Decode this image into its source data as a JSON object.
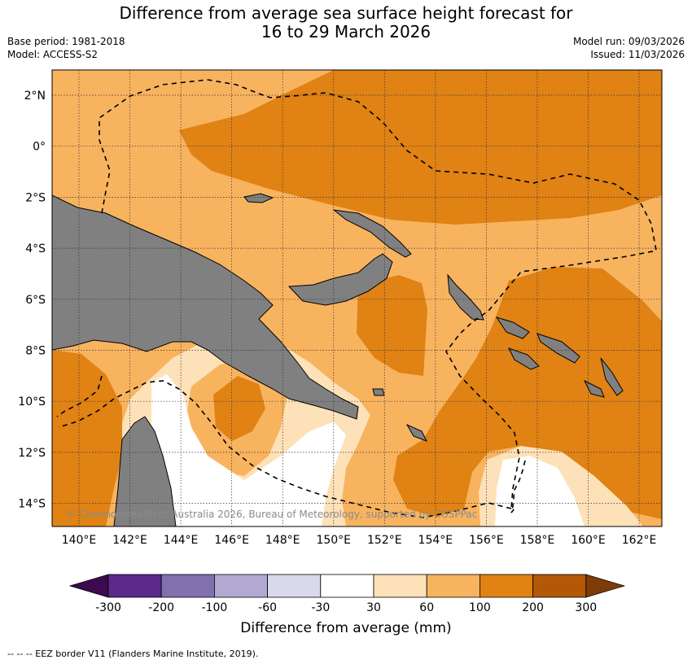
{
  "title_line1": "Difference from average sea surface height forecast for",
  "title_line2": "16 to 29 March 2026",
  "base_period": "Base period: 1981-2018",
  "model": "Model: ACCESS-S2",
  "model_run": "Model run: 09/03/2026",
  "issued": "Issued: 11/03/2026",
  "copyright": "© Commonwealth of Australia 2026, Bureau of Meteorology, supported by COSPPac",
  "lon_ticks": [
    "140°E",
    "142°E",
    "144°E",
    "146°E",
    "148°E",
    "150°E",
    "152°E",
    "154°E",
    "156°E",
    "158°E",
    "160°E",
    "162°E"
  ],
  "lat_ticks": [
    "2°N",
    "0°",
    "2°S",
    "4°S",
    "6°S",
    "8°S",
    "10°S",
    "12°S",
    "14°S"
  ],
  "colorbar": {
    "title": "Difference from average (mm)",
    "tick_labels": [
      "-300",
      "-200",
      "-100",
      "-60",
      "-30",
      "30",
      "60",
      "100",
      "200",
      "300"
    ],
    "colors": [
      "#3b0a4f",
      "#5b2a8a",
      "#8070ae",
      "#b1a9d1",
      "#d8d9ea",
      "#ffffff",
      "#fde1b8",
      "#f8b35f",
      "#e08214",
      "#b35806",
      "#7f3b08"
    ]
  },
  "footer": "--  --  -- EEZ border V11 (Flanders Marine Institute, 2019).",
  "colors": {
    "land": "#808080",
    "gridline": "#333333"
  }
}
